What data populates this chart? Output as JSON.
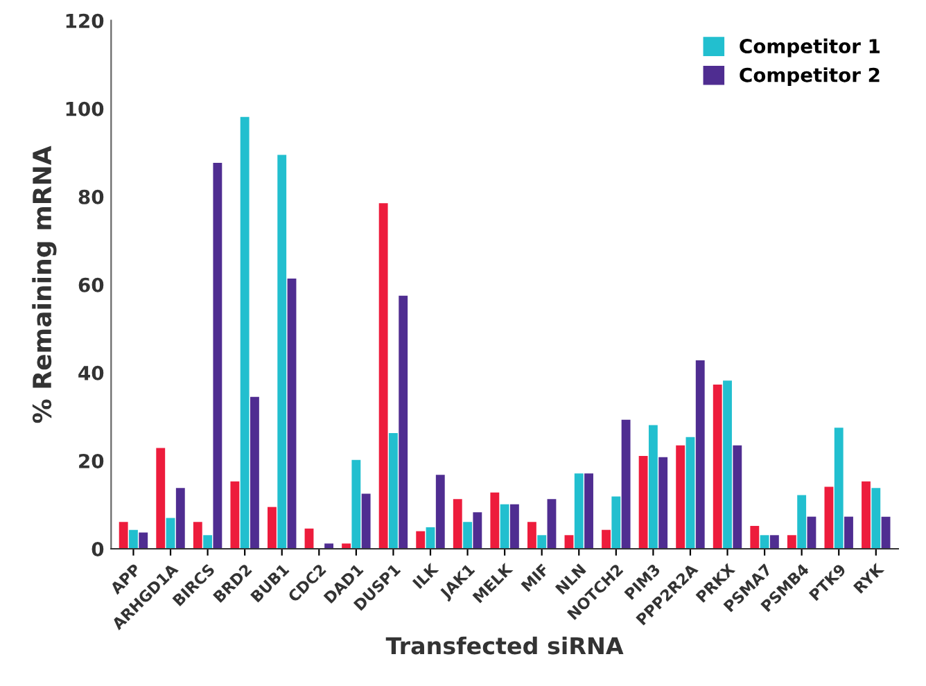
{
  "chart_data": {
    "type": "bar",
    "xlabel": "Transfected siRNA",
    "ylabel": "% Remaining mRNA",
    "categories": [
      "APP",
      "ARHGD1A",
      "BIRCS",
      "BRD2",
      "BUB1",
      "CDC2",
      "DAD1",
      "DUSP1",
      "ILK",
      "JAK1",
      "MELK",
      "MIF",
      "NLN",
      "NOTCH2",
      "PIM3",
      "PPP2R2A",
      "PRKX",
      "PSMA7",
      "PSMB4",
      "PTK9",
      "RYK"
    ],
    "series": [
      {
        "color": "#ed1c3c",
        "values": [
          6.1,
          22.9,
          6.1,
          15.3,
          9.5,
          4.6,
          1.2,
          78.5,
          4.0,
          11.3,
          12.8,
          6.1,
          3.1,
          4.3,
          21.1,
          23.5,
          37.3,
          5.2,
          3.1,
          14.1,
          15.3
        ]
      },
      {
        "name": "Competitor 1",
        "color": "#22bfcf",
        "values": [
          4.3,
          7.0,
          3.1,
          98.1,
          89.5,
          null,
          20.2,
          26.3,
          4.9,
          6.1,
          10.1,
          3.1,
          17.1,
          11.9,
          28.1,
          25.4,
          38.2,
          3.1,
          12.2,
          27.5,
          13.8
        ]
      },
      {
        "name": "Competitor 2",
        "color": "#4f2d91",
        "values": [
          3.7,
          13.8,
          87.7,
          34.5,
          61.4,
          1.2,
          12.5,
          57.5,
          16.8,
          8.3,
          10.1,
          11.3,
          17.1,
          29.3,
          20.8,
          42.8,
          23.5,
          3.1,
          7.3,
          7.3,
          7.3
        ]
      }
    ],
    "ylim": [
      0,
      120
    ],
    "yticks": [
      0,
      20,
      40,
      60,
      80,
      100,
      120
    ],
    "grid": false,
    "legend": "top right"
  }
}
